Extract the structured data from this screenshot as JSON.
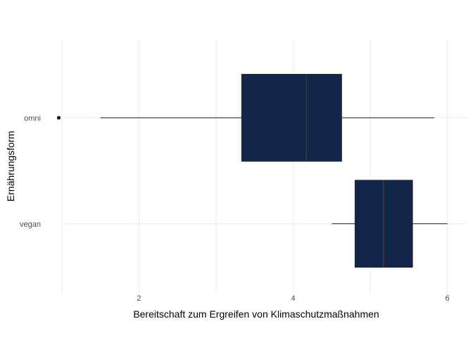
{
  "chart_data": {
    "type": "boxplot",
    "orientation": "horizontal",
    "title": "",
    "xlabel": "Bereitschaft zum Ergreifen von Klimaschutzmaßnahmen",
    "ylabel": "Ernährungsform",
    "xlim": [
      0.8,
      6.25
    ],
    "x_ticks": [
      2,
      4,
      6
    ],
    "grid": true,
    "legend": "none",
    "box_fill": "#13264a",
    "median_color": "#3f3f3f",
    "whisker_color": "#1a1a1a",
    "categories": [
      "omni",
      "vegan"
    ],
    "boxes": [
      {
        "category": "omni",
        "whisker_low": 1.5,
        "q1": 3.33,
        "median": 4.17,
        "q3": 4.63,
        "whisker_high": 5.83,
        "outliers": [
          0.96
        ]
      },
      {
        "category": "vegan",
        "whisker_low": 4.5,
        "q1": 4.8,
        "median": 5.17,
        "q3": 5.55,
        "whisker_high": 6.0,
        "outliers": []
      }
    ]
  }
}
